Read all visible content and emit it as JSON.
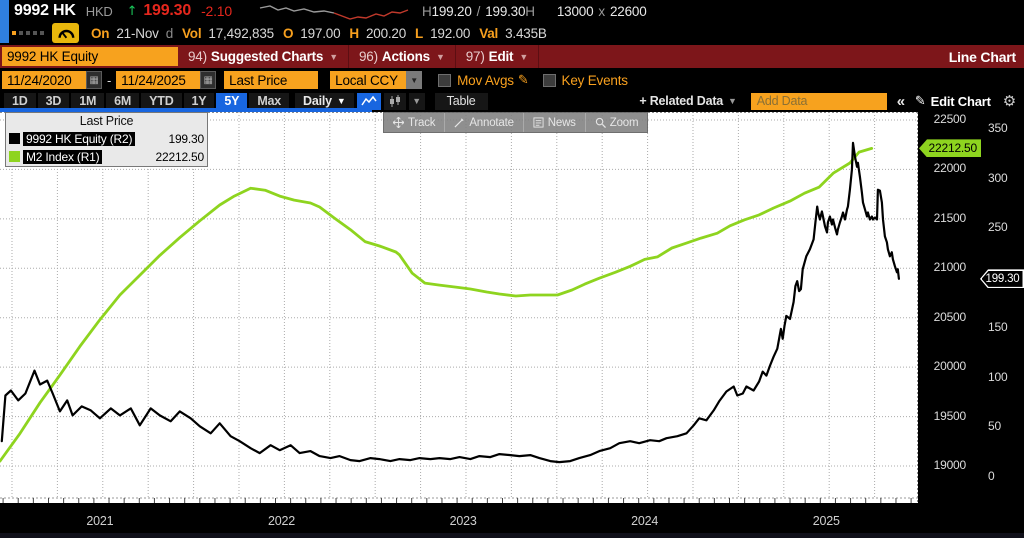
{
  "top_bar": {
    "ticker": "9992 HK",
    "currency": "HKD",
    "arrow": "↑",
    "last_price": "199.30",
    "change": "-2.10",
    "quote": {
      "bid_label": "H",
      "bid": "199.20",
      "sep": "/",
      "ask": "199.30",
      "ask_label": "H"
    },
    "sizes": {
      "bid_size": "13000",
      "x": "x",
      "ask_size": "22600"
    },
    "row2": {
      "on_label": "On",
      "date": "21-Nov",
      "session": "d",
      "vol_label": "Vol",
      "volume": "17,492,835",
      "open_label": "O",
      "open": "197.00",
      "high_label": "H",
      "high": "200.20",
      "low_label": "L",
      "low": "192.00",
      "val_label": "Val",
      "value_traded": "3.435B"
    }
  },
  "menu_bar": {
    "ticker_box": "9992 HK Equity",
    "items": [
      {
        "key": "94)",
        "label": "Suggested Charts"
      },
      {
        "key": "96)",
        "label": "Actions"
      },
      {
        "key": "97)",
        "label": "Edit"
      }
    ],
    "right_label": "Line Chart"
  },
  "controls": {
    "date_from": "11/24/2020",
    "date_to": "11/24/2025",
    "dash": "-",
    "field": "Last Price",
    "currency": "Local CCY",
    "mov_avgs": "Mov Avgs",
    "key_events": "Key Events"
  },
  "toolbar": {
    "periods": [
      "1D",
      "3D",
      "1M",
      "6M",
      "YTD",
      "1Y",
      "5Y",
      "Max"
    ],
    "active_period": "5Y",
    "frequency": "Daily",
    "table": "Table",
    "related_data": "+ Related Data",
    "add_data": "Add Data",
    "collapse": "«",
    "edit_chart": "Edit Chart"
  },
  "chart_toolbar": {
    "items": [
      "Track",
      "Annotate",
      "News",
      "Zoom"
    ]
  },
  "legend": {
    "title": "Last Price",
    "rows": [
      {
        "name": "9992 HK Equity  (R2)",
        "value": "199.30",
        "color": "#000000"
      },
      {
        "name": "M2 Index  (R1)",
        "value": "22212.50",
        "color": "#8ed41f"
      }
    ]
  },
  "axis_labels": {
    "r1_last": {
      "text": "22212.50",
      "value": 22212.5,
      "color": "#8ed41f"
    },
    "r2_last": {
      "text": "199.30",
      "value": 199.3
    }
  },
  "chart_data": {
    "type": "line",
    "x_range": [
      2020.9,
      2025.955
    ],
    "x_tick_years": [
      "2021",
      "2022",
      "2023",
      "2024",
      "2025"
    ],
    "grid": "dotted",
    "background": "#ffffff",
    "legend_position": "top-left",
    "axes": {
      "R1": {
        "name": "M2 Index",
        "ticks": [
          22500,
          22000,
          21500,
          21000,
          20500,
          20000,
          19500,
          19000
        ],
        "range": [
          18630,
          22620
        ]
      },
      "R2": {
        "name": "9992 HK Equity",
        "ticks": [
          350,
          300,
          250,
          150,
          100,
          50,
          0
        ],
        "range": [
          -26,
          371
        ]
      }
    },
    "series": [
      {
        "name": "M2 Index (R1)",
        "axis": "R1",
        "color": "#8ed41f",
        "last": 22212.5,
        "points": [
          [
            2020.9,
            19050
          ],
          [
            2021.01,
            19330
          ],
          [
            2021.12,
            19640
          ],
          [
            2021.23,
            19920
          ],
          [
            2021.34,
            20210
          ],
          [
            2021.45,
            20480
          ],
          [
            2021.56,
            20730
          ],
          [
            2021.67,
            20930
          ],
          [
            2021.78,
            21130
          ],
          [
            2021.89,
            21310
          ],
          [
            2022.0,
            21480
          ],
          [
            2022.11,
            21640
          ],
          [
            2022.19,
            21730
          ],
          [
            2022.28,
            21810
          ],
          [
            2022.36,
            21790
          ],
          [
            2022.44,
            21730
          ],
          [
            2022.52,
            21690
          ],
          [
            2022.61,
            21660
          ],
          [
            2022.66,
            21620
          ],
          [
            2022.74,
            21510
          ],
          [
            2022.83,
            21390
          ],
          [
            2022.91,
            21270
          ],
          [
            2022.99,
            21225
          ],
          [
            2023.08,
            21165
          ],
          [
            2023.1,
            21135
          ],
          [
            2023.17,
            20950
          ],
          [
            2023.24,
            20850
          ],
          [
            2023.32,
            20830
          ],
          [
            2023.41,
            20810
          ],
          [
            2023.49,
            20790
          ],
          [
            2023.58,
            20760
          ],
          [
            2023.65,
            20740
          ],
          [
            2023.74,
            20720
          ],
          [
            2023.82,
            20730
          ],
          [
            2023.9,
            20730
          ],
          [
            2023.97,
            20730
          ],
          [
            2024.05,
            20780
          ],
          [
            2024.12,
            20840
          ],
          [
            2024.2,
            20900
          ],
          [
            2024.29,
            20960
          ],
          [
            2024.37,
            21020
          ],
          [
            2024.45,
            21090
          ],
          [
            2024.52,
            21115
          ],
          [
            2024.6,
            21205
          ],
          [
            2024.68,
            21255
          ],
          [
            2024.76,
            21305
          ],
          [
            2024.85,
            21355
          ],
          [
            2024.92,
            21430
          ],
          [
            2025.0,
            21490
          ],
          [
            2025.08,
            21540
          ],
          [
            2025.16,
            21610
          ],
          [
            2025.25,
            21680
          ],
          [
            2025.33,
            21760
          ],
          [
            2025.41,
            21820
          ],
          [
            2025.49,
            21965
          ],
          [
            2025.58,
            22065
          ],
          [
            2025.63,
            22175
          ],
          [
            2025.7,
            22212.5
          ]
        ]
      },
      {
        "name": "9992 HK Equity (R2)",
        "axis": "R2",
        "color": "#000000",
        "last": 199.3,
        "points": [
          [
            2020.91,
            36
          ],
          [
            2020.93,
            82
          ],
          [
            2020.96,
            87
          ],
          [
            2021.0,
            77
          ],
          [
            2021.04,
            84
          ],
          [
            2021.09,
            107
          ],
          [
            2021.12,
            93
          ],
          [
            2021.16,
            97
          ],
          [
            2021.19,
            84
          ],
          [
            2021.23,
            66
          ],
          [
            2021.27,
            77
          ],
          [
            2021.3,
            62
          ],
          [
            2021.35,
            71
          ],
          [
            2021.4,
            67
          ],
          [
            2021.45,
            59
          ],
          [
            2021.51,
            69
          ],
          [
            2021.56,
            62
          ],
          [
            2021.62,
            69
          ],
          [
            2021.67,
            52
          ],
          [
            2021.73,
            69
          ],
          [
            2021.78,
            62
          ],
          [
            2021.84,
            56
          ],
          [
            2021.89,
            66
          ],
          [
            2021.95,
            59
          ],
          [
            2022.0,
            51
          ],
          [
            2022.06,
            44
          ],
          [
            2022.11,
            54
          ],
          [
            2022.17,
            41
          ],
          [
            2022.22,
            36
          ],
          [
            2022.28,
            29
          ],
          [
            2022.33,
            24
          ],
          [
            2022.39,
            32
          ],
          [
            2022.44,
            27
          ],
          [
            2022.5,
            32
          ],
          [
            2022.55,
            24
          ],
          [
            2022.61,
            26
          ],
          [
            2022.66,
            21
          ],
          [
            2022.72,
            19
          ],
          [
            2022.77,
            21
          ],
          [
            2022.83,
            17
          ],
          [
            2022.88,
            16
          ],
          [
            2022.94,
            19
          ],
          [
            2022.99,
            18
          ],
          [
            2023.05,
            16
          ],
          [
            2023.1,
            18
          ],
          [
            2023.16,
            17
          ],
          [
            2023.21,
            19
          ],
          [
            2023.27,
            18
          ],
          [
            2023.32,
            19
          ],
          [
            2023.38,
            18
          ],
          [
            2023.43,
            20
          ],
          [
            2023.49,
            18
          ],
          [
            2023.54,
            21
          ],
          [
            2023.6,
            20
          ],
          [
            2023.65,
            23
          ],
          [
            2023.71,
            22
          ],
          [
            2023.76,
            21
          ],
          [
            2023.82,
            22
          ],
          [
            2023.87,
            19
          ],
          [
            2023.93,
            16
          ],
          [
            2023.98,
            15
          ],
          [
            2024.04,
            16
          ],
          [
            2024.09,
            19
          ],
          [
            2024.15,
            22
          ],
          [
            2024.2,
            26
          ],
          [
            2024.26,
            29
          ],
          [
            2024.31,
            34
          ],
          [
            2024.37,
            36
          ],
          [
            2024.42,
            34
          ],
          [
            2024.48,
            37
          ],
          [
            2024.53,
            36
          ],
          [
            2024.57,
            39
          ],
          [
            2024.63,
            41
          ],
          [
            2024.68,
            44
          ],
          [
            2024.72,
            52
          ],
          [
            2024.75,
            59
          ],
          [
            2024.79,
            57
          ],
          [
            2024.83,
            67
          ],
          [
            2024.86,
            76
          ],
          [
            2024.9,
            86
          ],
          [
            2024.94,
            91
          ],
          [
            2024.96,
            82
          ],
          [
            2024.99,
            84
          ],
          [
            2025.01,
            91
          ],
          [
            2025.05,
            87
          ],
          [
            2025.08,
            96
          ],
          [
            2025.1,
            106
          ],
          [
            2025.12,
            102
          ],
          [
            2025.14,
            112
          ],
          [
            2025.16,
            121
          ],
          [
            2025.18,
            129
          ],
          [
            2025.19,
            139
          ],
          [
            2025.2,
            149
          ],
          [
            2025.21,
            139
          ],
          [
            2025.22,
            152
          ],
          [
            2025.23,
            162
          ],
          [
            2025.25,
            159
          ],
          [
            2025.27,
            176
          ],
          [
            2025.28,
            192
          ],
          [
            2025.29,
            197
          ],
          [
            2025.3,
            187
          ],
          [
            2025.31,
            189
          ],
          [
            2025.32,
            209
          ],
          [
            2025.34,
            222
          ],
          [
            2025.36,
            229
          ],
          [
            2025.38,
            239
          ],
          [
            2025.39,
            256
          ],
          [
            2025.4,
            272
          ],
          [
            2025.405,
            266
          ],
          [
            2025.415,
            259
          ],
          [
            2025.426,
            267
          ],
          [
            2025.432,
            262
          ],
          [
            2025.443,
            252
          ],
          [
            2025.454,
            246
          ],
          [
            2025.459,
            256
          ],
          [
            2025.47,
            262
          ],
          [
            2025.481,
            254
          ],
          [
            2025.487,
            259
          ],
          [
            2025.498,
            251
          ],
          [
            2025.509,
            244
          ],
          [
            2025.514,
            249
          ],
          [
            2025.525,
            256
          ],
          [
            2025.536,
            262
          ],
          [
            2025.542,
            266
          ],
          [
            2025.553,
            259
          ],
          [
            2025.564,
            269
          ],
          [
            2025.569,
            272
          ],
          [
            2025.58,
            289
          ],
          [
            2025.591,
            309
          ],
          [
            2025.597,
            336
          ],
          [
            2025.608,
            322
          ],
          [
            2025.619,
            312
          ],
          [
            2025.624,
            316
          ],
          [
            2025.635,
            302
          ],
          [
            2025.646,
            286
          ],
          [
            2025.652,
            276
          ],
          [
            2025.663,
            269
          ],
          [
            2025.674,
            262
          ],
          [
            2025.679,
            266
          ],
          [
            2025.69,
            259
          ],
          [
            2025.701,
            262
          ],
          [
            2025.707,
            259
          ],
          [
            2025.718,
            261
          ],
          [
            2025.729,
            259
          ],
          [
            2025.734,
            289
          ],
          [
            2025.745,
            288
          ],
          [
            2025.756,
            276
          ],
          [
            2025.762,
            259
          ],
          [
            2025.773,
            242
          ],
          [
            2025.784,
            236
          ],
          [
            2025.789,
            229
          ],
          [
            2025.8,
            222
          ],
          [
            2025.811,
            226
          ],
          [
            2025.817,
            219
          ],
          [
            2025.828,
            212
          ],
          [
            2025.839,
            206
          ],
          [
            2025.844,
            209
          ],
          [
            2025.85,
            199.3
          ]
        ]
      }
    ]
  }
}
